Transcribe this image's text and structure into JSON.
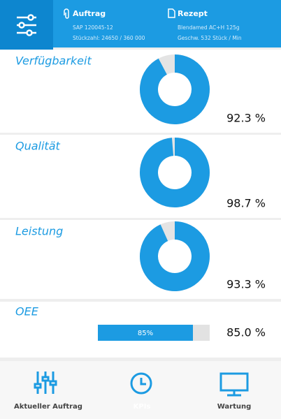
{
  "header": {
    "order": {
      "title": "Auftrag",
      "line1": "SAP 120045-12",
      "line2": "Stückzahl: 24650 / 360 000"
    },
    "recipe": {
      "title": "Rezept",
      "line1": "Blendamed AC+H 125g",
      "line2": "Geschw.  532 Stück / Min"
    }
  },
  "kpis": {
    "labels": [
      "Verfügbarkeit",
      "Qualität",
      "Leistung"
    ],
    "values": [
      92.3,
      98.7,
      93.3
    ],
    "value_labels": [
      "92.3 %",
      "98.7 %",
      "93.3 %"
    ],
    "color": "#1c9be2"
  },
  "oee": {
    "label": "OEE",
    "value": 85.0,
    "value_label": "85.0 %",
    "bar_label": "85%"
  },
  "nav": {
    "tabs": [
      "Aktueller Auftrag",
      "KPIs",
      "Wartung"
    ],
    "active": 1
  }
}
